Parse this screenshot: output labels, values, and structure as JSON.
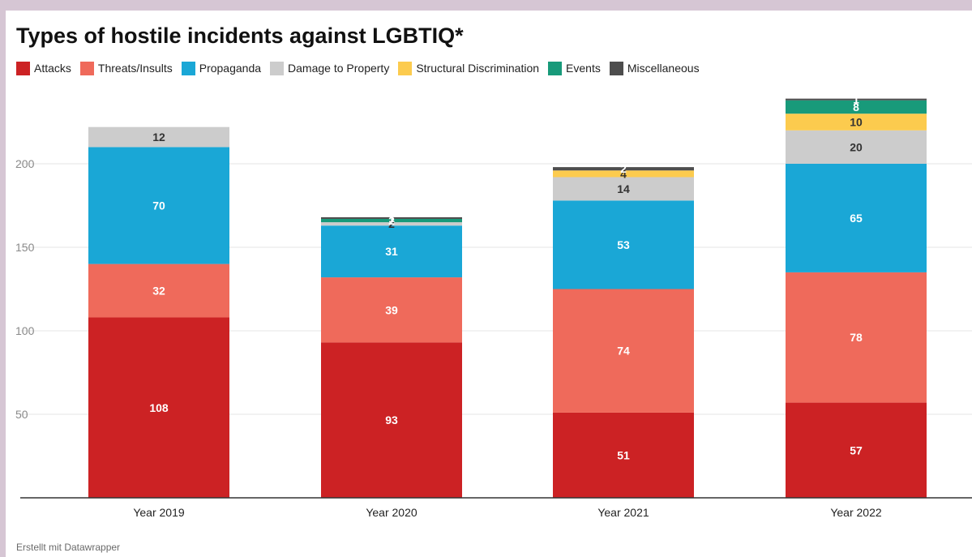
{
  "chart_data": {
    "type": "bar",
    "stacked": true,
    "title": "Types of hostile incidents against LGBTIQ*",
    "xlabel": "",
    "ylabel": "",
    "categories": [
      "Year 2019",
      "Year 2020",
      "Year 2021",
      "Year 2022"
    ],
    "yticks": [
      50,
      100,
      150,
      200
    ],
    "ylim": [
      0,
      240
    ],
    "grid": true,
    "legend_position": "top-left",
    "series": [
      {
        "name": "Attacks",
        "color": "#cc2224",
        "values": [
          108,
          93,
          51,
          57
        ]
      },
      {
        "name": "Threats/Insults",
        "color": "#ef6a5b",
        "values": [
          32,
          39,
          74,
          78
        ]
      },
      {
        "name": "Propaganda",
        "color": "#1aa7d6",
        "values": [
          70,
          31,
          53,
          65
        ]
      },
      {
        "name": "Damage to Property",
        "color": "#cccccc",
        "values": [
          12,
          2,
          14,
          20
        ]
      },
      {
        "name": "Structural Discrimination",
        "color": "#fccb4e",
        "values": [
          0,
          0,
          4,
          10
        ]
      },
      {
        "name": "Events",
        "color": "#189a7a",
        "values": [
          0,
          2,
          0,
          8
        ]
      },
      {
        "name": "Miscellaneous",
        "color": "#4d4d4d",
        "values": [
          0,
          1,
          2,
          1
        ]
      }
    ]
  },
  "footer": "Erstellt mit Datawrapper"
}
